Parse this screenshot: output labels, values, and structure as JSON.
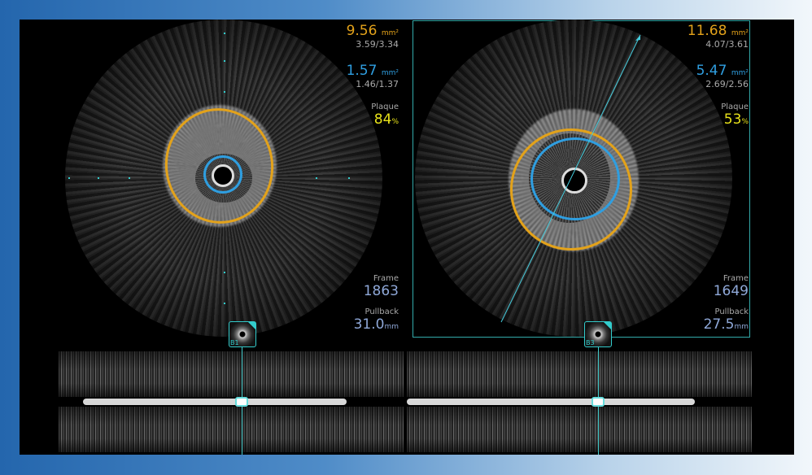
{
  "left": {
    "vessel_area": "9.56",
    "vessel_diams": "3.59/3.34",
    "lumen_area": "1.57",
    "lumen_diams": "1.46/1.37",
    "plaque_label": "Plaque",
    "plaque_value": "84",
    "plaque_unit": "%",
    "frame_label": "Frame",
    "frame": "1863",
    "pullback_label": "Pullback",
    "pullback": "31.0",
    "pullback_unit": "mm",
    "area_unit": "mm²",
    "marker": "B1"
  },
  "right": {
    "vessel_area": "11.68",
    "vessel_diams": "4.07/3.61",
    "lumen_area": "5.47",
    "lumen_diams": "2.69/2.56",
    "plaque_label": "Plaque",
    "plaque_value": "53",
    "plaque_unit": "%",
    "frame_label": "Frame",
    "frame": "1649",
    "pullback_label": "Pullback",
    "pullback": "27.5",
    "pullback_unit": "mm",
    "area_unit": "mm²",
    "marker": "B3"
  },
  "colors": {
    "vessel": "#e3a21a",
    "lumen": "#2f9ee0",
    "plaque": "#e8e21a",
    "accent": "#3cc8c8"
  }
}
